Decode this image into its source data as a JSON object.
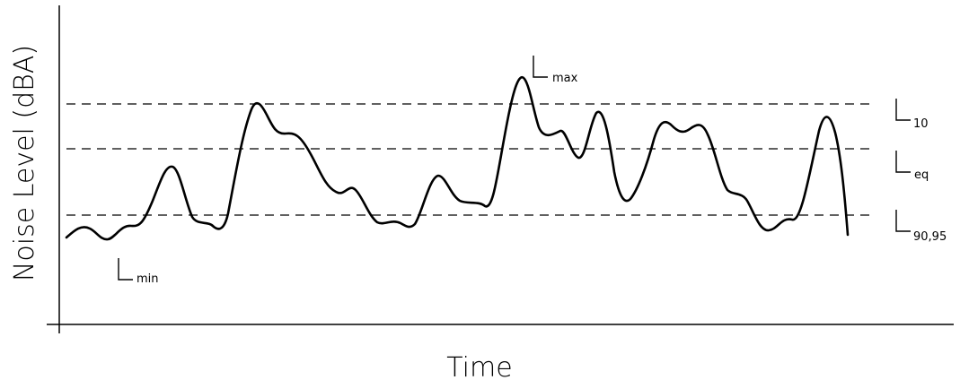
{
  "chart_data": {
    "type": "line",
    "xlabel": "Time",
    "ylabel": "Noise Level (dBA)",
    "reference_lines": [
      {
        "label": "L",
        "sub": "10"
      },
      {
        "label": "L",
        "sub": "eq"
      },
      {
        "label": "L",
        "sub": "90,95"
      }
    ],
    "annotations": [
      {
        "label": "L",
        "sub": "max"
      },
      {
        "label": "L",
        "sub": "min"
      }
    ]
  }
}
